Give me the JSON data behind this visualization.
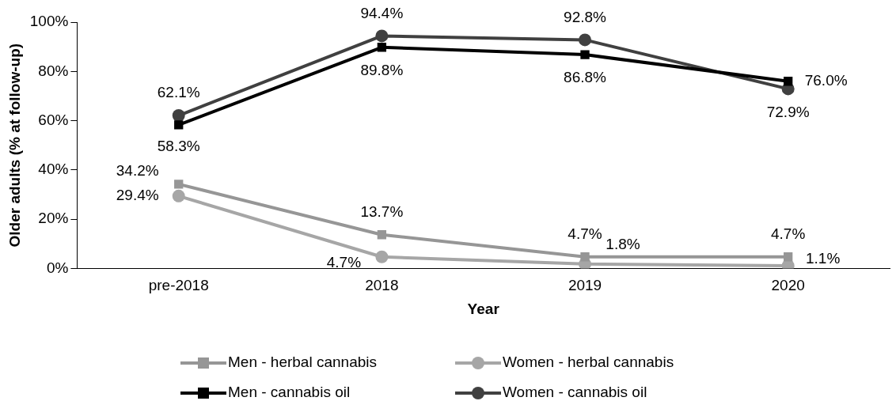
{
  "chart_data": {
    "type": "line",
    "xlabel": "Year",
    "ylabel": "Older adults (% at follow-up)",
    "categories": [
      "pre-2018",
      "2018",
      "2019",
      "2020"
    ],
    "ylim": [
      0,
      100
    ],
    "yticks": [
      {
        "value": 0,
        "label": "0%"
      },
      {
        "value": 20,
        "label": "20%"
      },
      {
        "value": 40,
        "label": "40%"
      },
      {
        "value": 60,
        "label": "60%"
      },
      {
        "value": 80,
        "label": "80%"
      },
      {
        "value": 100,
        "label": "100%"
      }
    ],
    "grid": false,
    "legend": "bottom",
    "line_style": "solid",
    "series": [
      {
        "name": "Men - herbal cannabis",
        "color": "#969696",
        "marker": "square",
        "values": [
          34.2,
          13.7,
          4.7,
          4.7
        ],
        "value_labels": [
          "34.2%",
          "13.7%",
          "4.7%",
          "4.7%"
        ]
      },
      {
        "name": "Women - herbal cannabis",
        "color": "#a6a6a6",
        "marker": "circle",
        "values": [
          29.4,
          4.7,
          1.8,
          1.1
        ],
        "value_labels": [
          "29.4%",
          "4.7%",
          "1.8%",
          "1.1%"
        ]
      },
      {
        "name": "Men - cannabis oil",
        "color": "#000000",
        "marker": "square",
        "values": [
          58.3,
          89.8,
          86.8,
          76.0
        ],
        "value_labels": [
          "58.3%",
          "89.8%",
          "86.8%",
          "76.0%"
        ]
      },
      {
        "name": "Women - cannabis oil",
        "color": "#404040",
        "marker": "circle",
        "values": [
          62.1,
          94.4,
          92.8,
          72.9
        ],
        "value_labels": [
          "62.1%",
          "94.4%",
          "92.8%",
          "72.9%"
        ]
      }
    ]
  }
}
